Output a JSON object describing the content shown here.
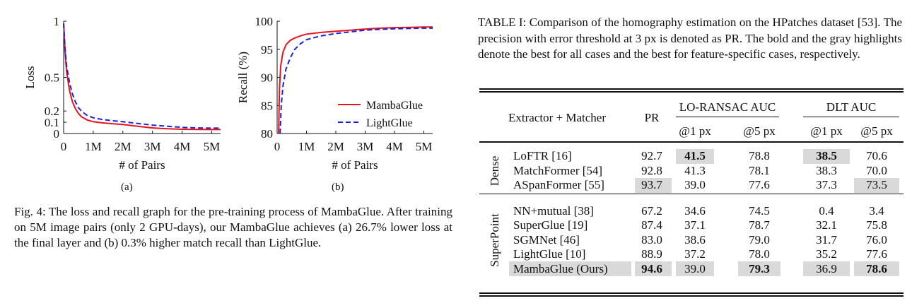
{
  "figure": {
    "chart_data": [
      {
        "type": "line",
        "xlabel": "# of Pairs",
        "ylabel": "Loss",
        "xticks": [
          "0",
          "1M",
          "2M",
          "3M",
          "4M",
          "5M"
        ],
        "yticks": [
          "0",
          "0.1",
          "0.2",
          "0.5",
          "1"
        ],
        "xlim": [
          0,
          5.3
        ],
        "ylim": [
          0,
          1
        ],
        "series": [
          {
            "name": "MambaGlue",
            "color": "#e8141c",
            "style": "solid",
            "x": [
              0,
              0.05,
              0.1,
              0.2,
              0.3,
              0.4,
              0.5,
              0.6,
              0.8,
              1.0,
              1.3,
              1.6,
              2.0,
              2.5,
              3.0,
              3.5,
              4.0,
              4.5,
              5.0,
              5.3
            ],
            "y": [
              0.98,
              0.72,
              0.55,
              0.38,
              0.28,
              0.22,
              0.18,
              0.15,
              0.12,
              0.105,
              0.095,
              0.088,
              0.08,
              0.065,
              0.05,
              0.042,
              0.038,
              0.036,
              0.035,
              0.035
            ]
          },
          {
            "name": "LightGlue",
            "color": "#1a22d8",
            "style": "dashed",
            "x": [
              0,
              0.05,
              0.1,
              0.2,
              0.3,
              0.4,
              0.5,
              0.6,
              0.8,
              1.0,
              1.3,
              1.6,
              2.0,
              2.5,
              3.0,
              3.5,
              4.0,
              4.5,
              5.0,
              5.3
            ],
            "y": [
              0.98,
              0.75,
              0.6,
              0.45,
              0.35,
              0.28,
              0.23,
              0.2,
              0.16,
              0.14,
              0.125,
              0.115,
              0.105,
              0.09,
              0.075,
              0.065,
              0.055,
              0.05,
              0.048,
              0.048
            ]
          }
        ]
      },
      {
        "type": "line",
        "xlabel": "# of Pairs",
        "ylabel": "Recall (%)",
        "xticks": [
          "0",
          "1M",
          "2M",
          "3M",
          "4M",
          "5M"
        ],
        "yticks": [
          "80",
          "85",
          "90",
          "95",
          "100"
        ],
        "xlim": [
          0,
          5.3
        ],
        "ylim": [
          80,
          100
        ],
        "legend": "right",
        "series": [
          {
            "name": "MambaGlue",
            "color": "#e8141c",
            "style": "solid",
            "x": [
              0.05,
              0.08,
              0.12,
              0.2,
              0.3,
              0.45,
              0.6,
              0.8,
              1.0,
              1.5,
              2.0,
              2.5,
              3.0,
              3.5,
              4.0,
              4.5,
              5.0,
              5.3
            ],
            "y": [
              80,
              88,
              92,
              94.5,
              95.8,
              96.6,
              97.0,
              97.4,
              97.7,
              98.0,
              98.2,
              98.4,
              98.6,
              98.75,
              98.85,
              98.9,
              98.95,
              98.95
            ]
          },
          {
            "name": "LightGlue",
            "color": "#1a22d8",
            "style": "dashed",
            "x": [
              0.1,
              0.14,
              0.2,
              0.3,
              0.45,
              0.6,
              0.8,
              1.0,
              1.5,
              2.0,
              2.5,
              3.0,
              3.5,
              4.0,
              4.5,
              5.0,
              5.3
            ],
            "y": [
              80,
              85,
              88.5,
              91.5,
              93.5,
              95.0,
              96.0,
              96.7,
              97.4,
              97.8,
              98.1,
              98.4,
              98.55,
              98.65,
              98.7,
              98.75,
              98.75
            ]
          }
        ]
      }
    ],
    "sublabel_a": "(a)",
    "sublabel_b": "(b)",
    "caption": "Fig. 4: The loss and recall graph for the pre-training process of MambaGlue. After training on 5M image pairs (only 2 GPU-days), our MambaGlue achieves (a) 26.7% lower loss at the final layer and (b) 0.3% higher match recall than LightGlue."
  },
  "table": {
    "caption": "TABLE I: Comparison of the homography estimation on the HPatches dataset [53]. The precision with error threshold at 3 px is denoted as PR. The bold and the gray highlights denote the best for all cases and the best for feature-specific cases, respectively.",
    "headers": {
      "method": "Extractor + Matcher",
      "pr": "PR",
      "lo_ransac": "LO-RANSAC AUC",
      "dlt": "DLT AUC",
      "at1": "@1 px",
      "at5": "@5 px"
    },
    "groups": [
      {
        "name": "Dense",
        "rows": [
          {
            "cells": [
              "LoFTR [16]",
              "92.7",
              "41.5",
              "78.8",
              "38.5",
              "70.6"
            ],
            "bold": [
              2,
              4
            ],
            "gray": [
              2,
              4
            ]
          },
          {
            "cells": [
              "MatchFormer [54]",
              "92.8",
              "41.3",
              "78.1",
              "38.3",
              "70.0"
            ],
            "bold": [],
            "gray": []
          },
          {
            "cells": [
              "ASpanFormer [55]",
              "93.7",
              "39.0",
              "77.6",
              "37.3",
              "73.5"
            ],
            "bold": [],
            "gray": [
              1,
              5
            ]
          }
        ]
      },
      {
        "name": "SuperPoint",
        "rows": [
          {
            "cells": [
              "NN+mutual [38]",
              "67.2",
              "34.6",
              "74.5",
              "0.4",
              "3.4"
            ],
            "bold": [],
            "gray": []
          },
          {
            "cells": [
              "SuperGlue [19]",
              "87.4",
              "37.1",
              "78.7",
              "32.1",
              "75.8"
            ],
            "bold": [],
            "gray": []
          },
          {
            "cells": [
              "SGMNet [46]",
              "83.0",
              "38.6",
              "79.0",
              "31.7",
              "76.0"
            ],
            "bold": [],
            "gray": []
          },
          {
            "cells": [
              "LightGlue [10]",
              "88.9",
              "37.2",
              "78.0",
              "35.2",
              "77.6"
            ],
            "bold": [],
            "gray": []
          },
          {
            "cells": [
              "MambaGlue (Ours)",
              "94.6",
              "39.0",
              "79.3",
              "36.9",
              "78.6"
            ],
            "bold": [
              1,
              3,
              5
            ],
            "gray": [
              0,
              1,
              2,
              3,
              4,
              5
            ]
          }
        ]
      }
    ]
  }
}
